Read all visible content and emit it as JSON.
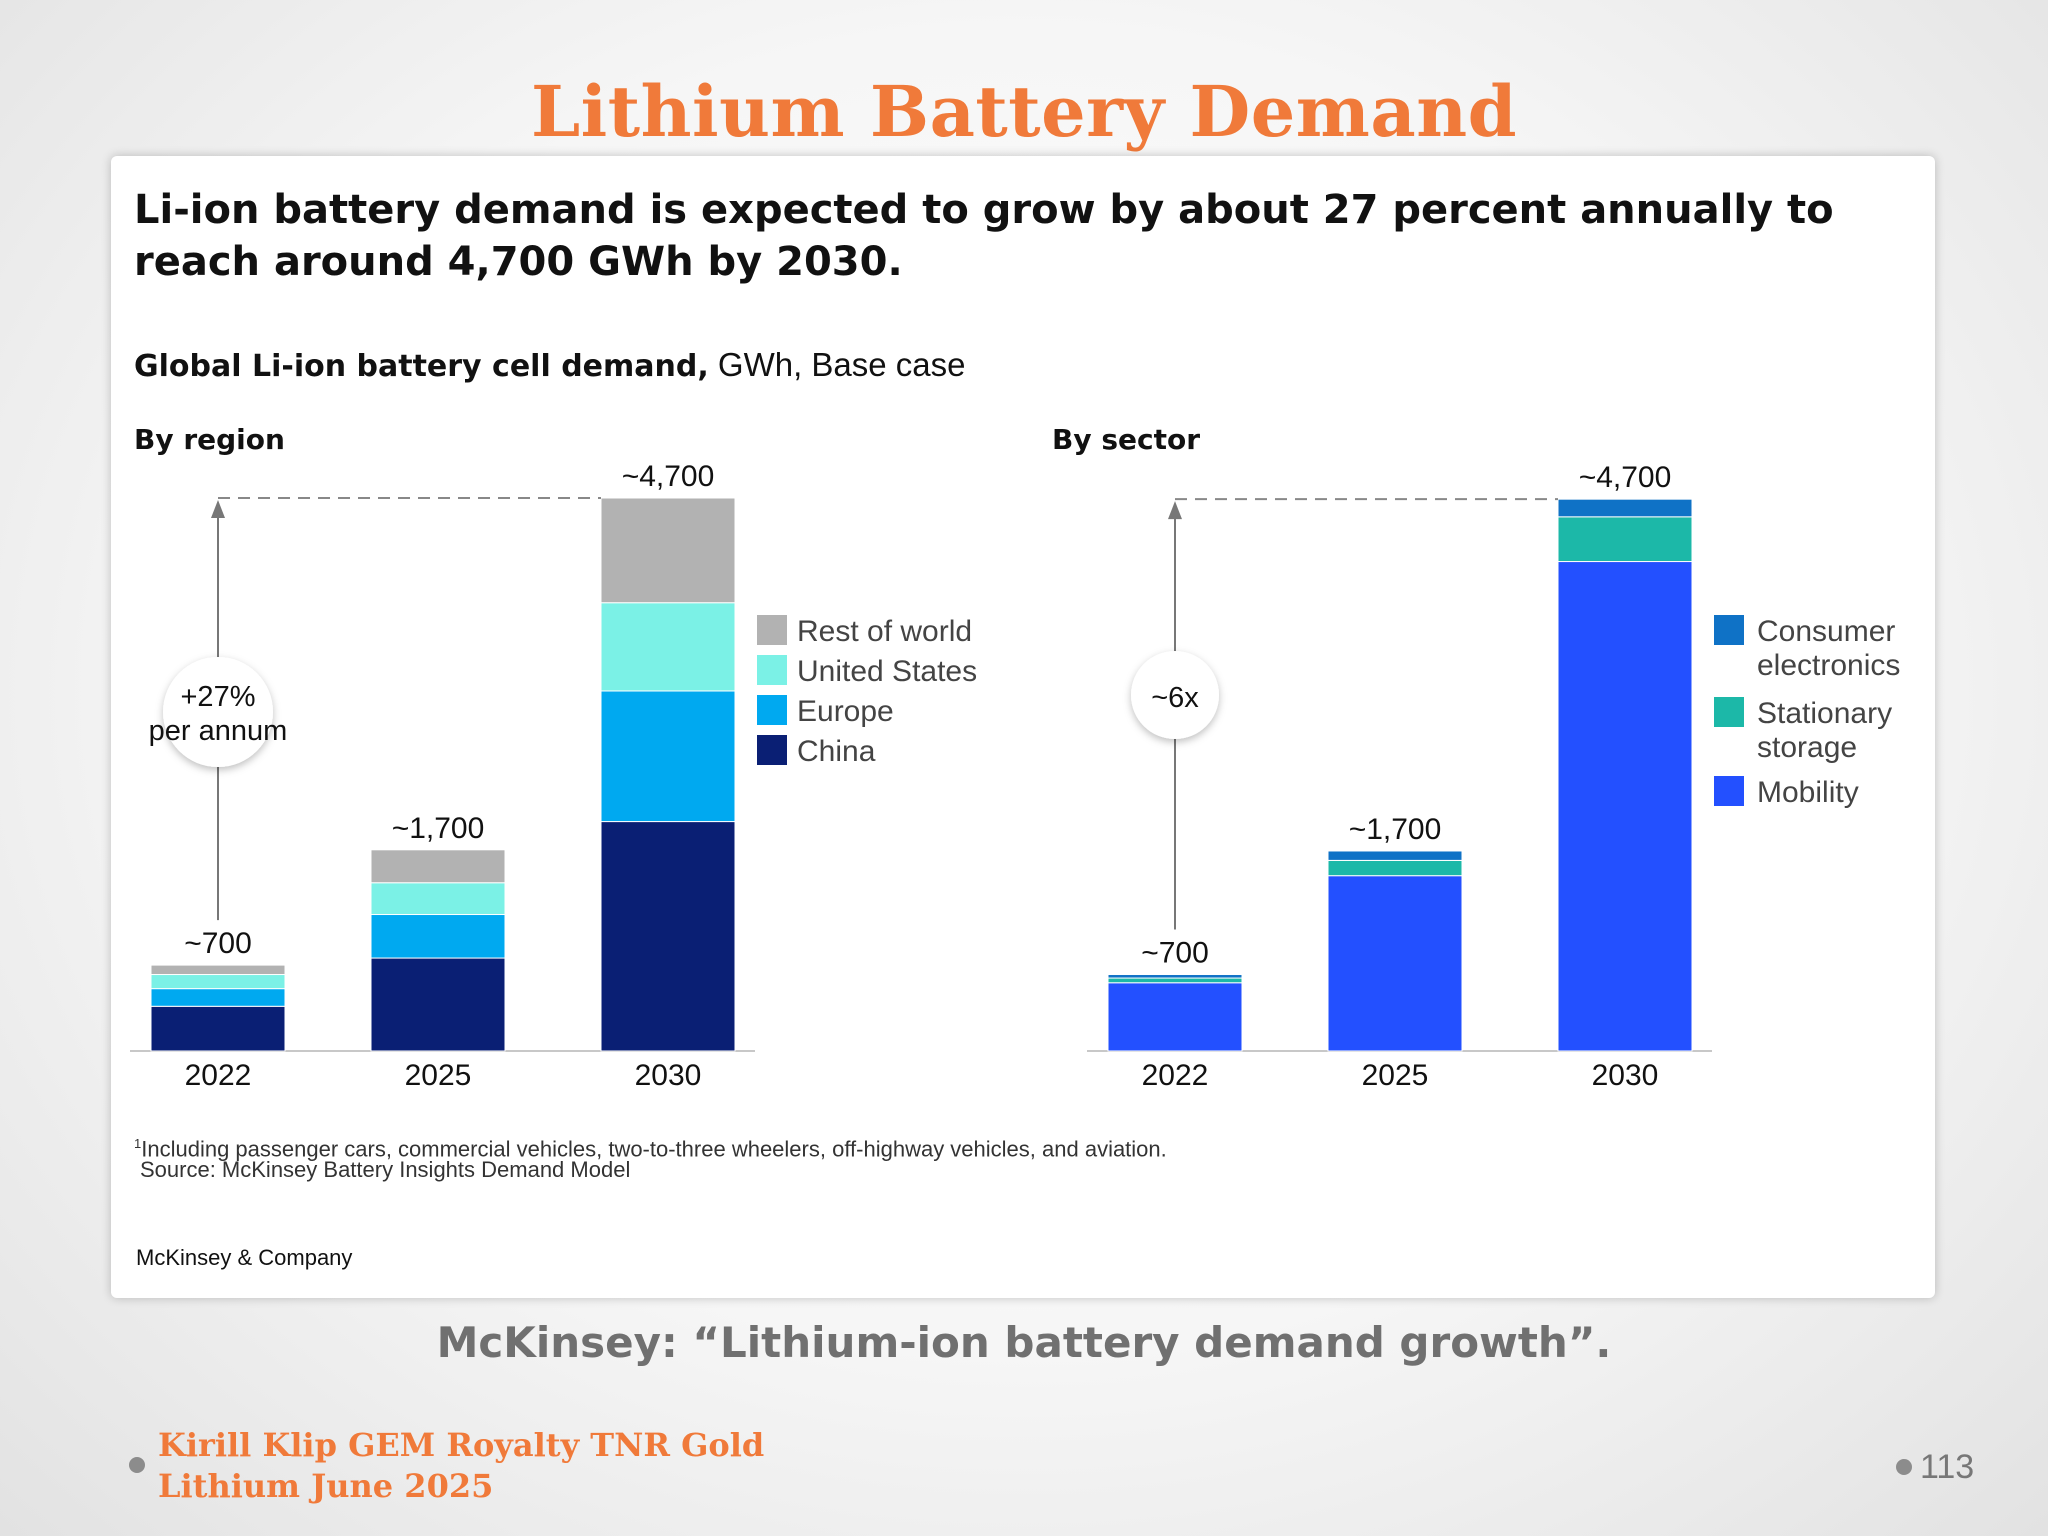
{
  "slide": {
    "title": "Lithium Battery Demand",
    "caption": "McKinsey: “Lithium-ion battery demand growth”.",
    "author_line1": "Kirill Klip GEM Royalty TNR Gold",
    "author_line2": "Lithium June 2025",
    "page_number": "113"
  },
  "figure": {
    "headline_line1": "Li-ion battery demand is expected to grow by about 27 percent annually to",
    "headline_line2": "reach around 4,700  GWh by 2030.",
    "subtitle_bold": "Global Li-ion battery cell demand,",
    "subtitle_rest": " GWh, Base case",
    "footnote_marker": "1",
    "footnote": "Including passenger cars, commercial vehicles, two-to-three wheelers, off-highway vehicles, and aviation.",
    "source": "Source: McKinsey Battery Insights Demand Model",
    "brand": "McKinsey & Company"
  },
  "chart_data": [
    {
      "type": "bar",
      "stacked": true,
      "title": "By region",
      "categories": [
        "2022",
        "2025",
        "2030"
      ],
      "totals": [
        "~700",
        "~1,700",
        "~4,700"
      ],
      "annotation": [
        "+27%",
        "per annum"
      ],
      "ylim": [
        0,
        4700
      ],
      "legend_position": "right",
      "grid": false,
      "series": [
        {
          "name": "China",
          "color": "#0a1f74",
          "values": [
            380,
            790,
            1950
          ]
        },
        {
          "name": "Europe",
          "color": "#00a9f0",
          "values": [
            150,
            370,
            1110
          ]
        },
        {
          "name": "United States",
          "color": "#7bf1e6",
          "values": [
            120,
            270,
            750
          ]
        },
        {
          "name": "Rest of world",
          "color": "#b2b2b2",
          "values": [
            80,
            280,
            890
          ]
        }
      ]
    },
    {
      "type": "bar",
      "stacked": true,
      "title": "By sector",
      "categories": [
        "2022",
        "2025",
        "2030"
      ],
      "totals": [
        "~700",
        "~1,700",
        "~4,700"
      ],
      "annotation": [
        "~6x"
      ],
      "ylim": [
        0,
        4700
      ],
      "legend_position": "right",
      "grid": false,
      "series": [
        {
          "name": "Mobility",
          "color": "#2350ff",
          "values": [
            580,
            1490,
            4160
          ]
        },
        {
          "name": "Stationary storage",
          "color": "#1cb8a8",
          "values": [
            40,
            130,
            380
          ]
        },
        {
          "name": "Consumer electronics",
          "color": "#0f72c6",
          "values": [
            30,
            80,
            150
          ]
        }
      ],
      "legend_labels": [
        {
          "line1": "Consumer",
          "line2": "electronics",
          "color": "#0f72c6"
        },
        {
          "line1": "Stationary",
          "line2": "storage",
          "color": "#1cb8a8"
        },
        {
          "line1": "Mobility",
          "line2": "",
          "color": "#2350ff"
        }
      ]
    }
  ]
}
